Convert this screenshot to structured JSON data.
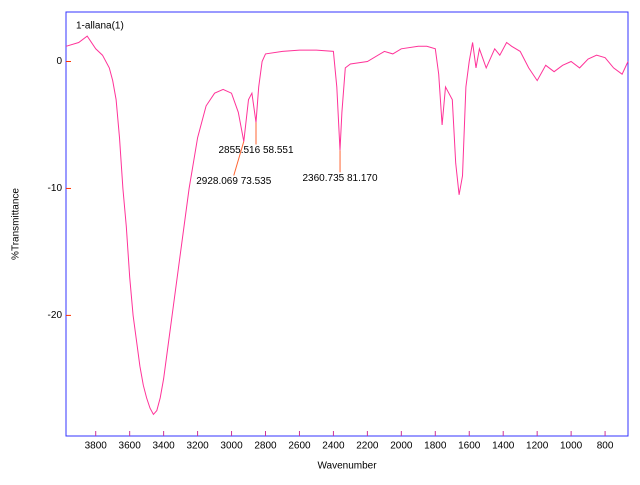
{
  "chart_data": {
    "type": "line",
    "x_label": "Wavenumber",
    "y_label": "%Transmittance",
    "xlim": [
      3975,
      665
    ],
    "ylim": [
      -29.5,
      3.9
    ],
    "xticks": [
      3800,
      3600,
      3400,
      3200,
      3000,
      2800,
      2600,
      2400,
      2200,
      2000,
      1800,
      1600,
      1400,
      1200,
      1000,
      800
    ],
    "yticks": [
      0,
      -10,
      -20
    ],
    "series": [
      {
        "name": "1-allana(1)",
        "color": "#ff3399",
        "x": [
          3975,
          3900,
          3850,
          3800,
          3760,
          3720,
          3700,
          3680,
          3660,
          3640,
          3620,
          3600,
          3580,
          3560,
          3540,
          3520,
          3500,
          3480,
          3460,
          3440,
          3420,
          3400,
          3380,
          3350,
          3300,
          3250,
          3200,
          3150,
          3100,
          3050,
          3000,
          2960,
          2928,
          2900,
          2880,
          2856,
          2840,
          2820,
          2800,
          2700,
          2600,
          2500,
          2400,
          2380,
          2361,
          2350,
          2330,
          2300,
          2200,
          2100,
          2050,
          2000,
          1900,
          1850,
          1800,
          1780,
          1760,
          1740,
          1700,
          1680,
          1660,
          1640,
          1620,
          1600,
          1580,
          1560,
          1540,
          1500,
          1450,
          1420,
          1380,
          1350,
          1300,
          1250,
          1200,
          1150,
          1100,
          1050,
          1000,
          950,
          900,
          850,
          800,
          750,
          700,
          665
        ],
        "values": [
          1.2,
          1.5,
          2.0,
          1.0,
          0.5,
          -0.5,
          -1.5,
          -3,
          -6,
          -10,
          -13,
          -17,
          -20,
          -22,
          -24,
          -25.5,
          -26.5,
          -27.3,
          -27.8,
          -27.5,
          -26.5,
          -25,
          -23,
          -20,
          -15,
          -10,
          -6,
          -3.5,
          -2.5,
          -2.2,
          -2.5,
          -4,
          -6.3,
          -3,
          -2.5,
          -4.8,
          -2,
          0,
          0.6,
          0.8,
          0.9,
          0.9,
          0.8,
          -2,
          -7,
          -4,
          -0.5,
          -0.2,
          0,
          0.8,
          0.6,
          1,
          1.2,
          1.2,
          1,
          -1,
          -5,
          -2,
          -3,
          -8,
          -10.5,
          -9,
          -2,
          0,
          1.5,
          -0.5,
          1,
          -0.5,
          1,
          0.5,
          1.5,
          1.2,
          0.8,
          -0.5,
          -1.5,
          -0.3,
          -0.8,
          -0.3,
          0,
          -0.5,
          0.2,
          0.5,
          0.3,
          -0.5,
          -1,
          0
        ]
      }
    ],
    "annotations": [
      {
        "label": "2928.069  73.535",
        "x": 2928,
        "y": -6.3
      },
      {
        "label": "2855.516  58.551",
        "x": 2856,
        "y": -4.8
      },
      {
        "label": "2360.735  81.170",
        "x": 2361,
        "y": -7
      }
    ]
  }
}
